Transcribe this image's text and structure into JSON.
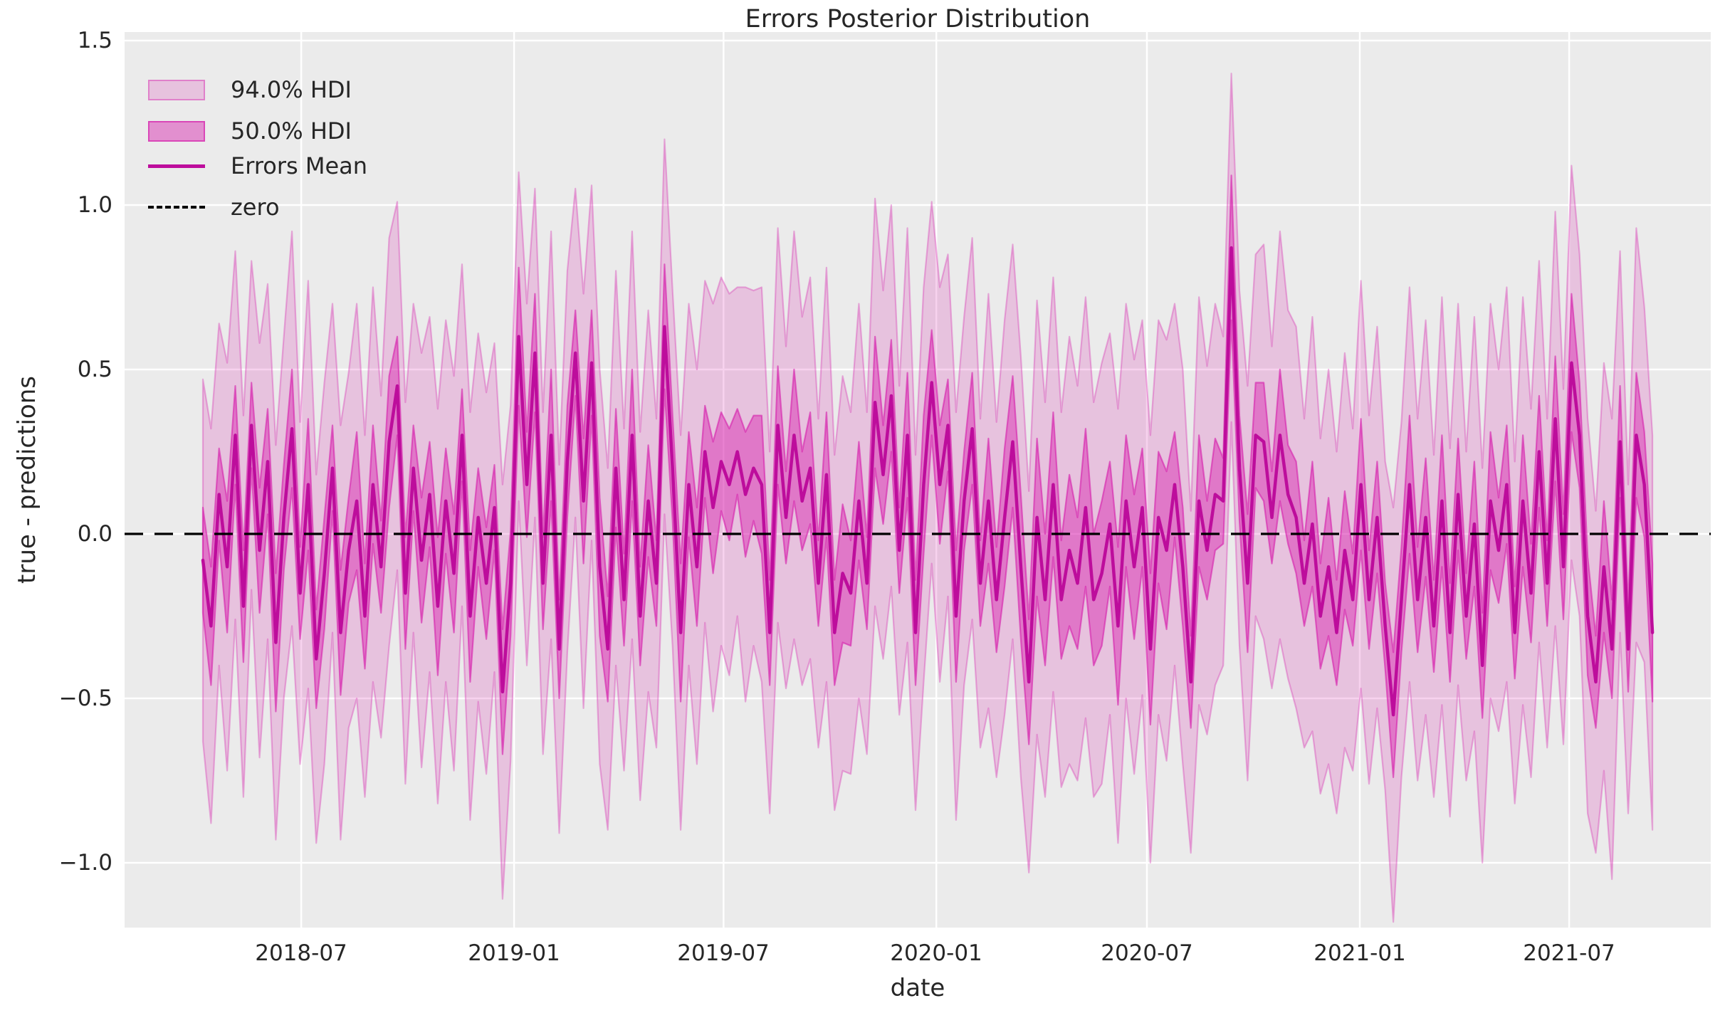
{
  "title": "Errors Posterior Distribution",
  "axes": {
    "xlabel": "date",
    "ylabel": "true - predictions"
  },
  "legend": {
    "items": [
      {
        "label": "94.0% HDI",
        "swatch": "patch-light"
      },
      {
        "label": "50.0% HDI",
        "swatch": "patch-dark"
      },
      {
        "label": "Errors Mean",
        "swatch": "line"
      },
      {
        "label": "zero",
        "swatch": "dashed-line"
      }
    ]
  },
  "chart_data": {
    "type": "line",
    "title": "Errors Posterior Distribution",
    "xlabel": "date",
    "ylabel": "true - predictions",
    "legend_position": "upper left",
    "grid": true,
    "x_start_date": "2018-04-07",
    "x_step_days": 7,
    "xlim_weeks": [
      -9.67,
      186.2
    ],
    "ylim": [
      -1.197,
      1.526
    ],
    "colors": {
      "band_base": "#d61eac",
      "band94_alpha": 0.2,
      "band50_alpha": 0.45,
      "mean_line": "#bd0d9c",
      "zero_line": "#000000",
      "plot_background": "#ebebeb",
      "grid": "#ffffff",
      "text": "#262626"
    },
    "yticks": [
      {
        "label": "1.5",
        "value": 1.5
      },
      {
        "label": "1.0",
        "value": 1.0
      },
      {
        "label": "0.5",
        "value": 0.5
      },
      {
        "label": "0.0",
        "value": 0.0
      },
      {
        "label": "−0.5",
        "value": -0.5
      },
      {
        "label": "−1.0",
        "value": -1.0
      }
    ],
    "xticks": [
      {
        "label": "2018-07",
        "week": 12.14
      },
      {
        "label": "2019-01",
        "week": 38.43
      },
      {
        "label": "2019-07",
        "week": 64.29
      },
      {
        "label": "2020-01",
        "week": 90.57
      },
      {
        "label": "2020-07",
        "week": 116.57
      },
      {
        "label": "2021-01",
        "week": 142.86
      },
      {
        "label": "2021-07",
        "week": 168.71
      }
    ],
    "series": {
      "mean": [
        -0.08,
        -0.28,
        0.12,
        -0.1,
        0.3,
        -0.22,
        0.33,
        -0.05,
        0.22,
        -0.33,
        0.05,
        0.32,
        -0.18,
        0.15,
        -0.38,
        -0.12,
        0.2,
        -0.3,
        -0.05,
        0.1,
        -0.25,
        0.15,
        -0.1,
        0.28,
        0.45,
        -0.18,
        0.2,
        -0.08,
        0.12,
        -0.22,
        0.1,
        -0.12,
        0.3,
        -0.25,
        0.05,
        -0.15,
        0.08,
        -0.48,
        -0.15,
        0.6,
        0.15,
        0.55,
        -0.15,
        0.3,
        -0.35,
        0.22,
        0.55,
        0.1,
        0.52,
        -0.1,
        -0.35,
        0.2,
        -0.2,
        0.3,
        -0.25,
        0.1,
        -0.15,
        0.63,
        0.2,
        -0.3,
        0.15,
        -0.1,
        0.25,
        0.08,
        0.22,
        0.15,
        0.25,
        0.12,
        0.2,
        0.15,
        -0.3,
        0.33,
        0.05,
        0.3,
        0.1,
        0.2,
        -0.15,
        0.18,
        -0.3,
        -0.12,
        -0.18,
        0.1,
        -0.15,
        0.4,
        0.18,
        0.42,
        -0.05,
        0.3,
        -0.3,
        0.15,
        0.46,
        0.15,
        0.33,
        -0.25,
        0.1,
        0.32,
        -0.15,
        0.1,
        -0.2,
        0.05,
        0.28,
        -0.1,
        -0.45,
        0.05,
        -0.2,
        0.15,
        -0.2,
        -0.05,
        -0.15,
        0.08,
        -0.2,
        -0.12,
        0.03,
        -0.28,
        0.1,
        -0.1,
        0.08,
        -0.35,
        0.05,
        -0.05,
        0.15,
        -0.1,
        -0.45,
        0.1,
        -0.05,
        0.12,
        0.1,
        0.87,
        0.2,
        -0.15,
        0.3,
        0.28,
        0.05,
        0.3,
        0.12,
        0.05,
        -0.15,
        0.03,
        -0.25,
        -0.1,
        -0.3,
        -0.05,
        -0.2,
        0.15,
        -0.2,
        0.05,
        -0.28,
        -0.55,
        -0.2,
        0.15,
        -0.2,
        0.05,
        -0.28,
        0.1,
        -0.3,
        0.12,
        -0.25,
        0.03,
        -0.4,
        0.1,
        -0.05,
        0.15,
        -0.3,
        0.1,
        -0.18,
        0.25,
        -0.15,
        0.35,
        -0.1,
        0.52,
        0.3,
        -0.25,
        -0.45,
        -0.1,
        -0.35,
        0.28,
        -0.35,
        0.3,
        0.15,
        -0.3
      ],
      "hdi50_halfwidth": [
        0.16,
        0.18,
        0.14,
        0.2,
        0.15,
        0.17,
        0.13,
        0.19,
        0.16,
        0.21,
        0.16,
        0.18,
        0.14,
        0.2,
        0.15,
        0.17,
        0.13,
        0.19,
        0.16,
        0.21,
        0.16,
        0.18,
        0.14,
        0.2,
        0.15,
        0.17,
        0.13,
        0.19,
        0.16,
        0.21,
        0.16,
        0.18,
        0.14,
        0.2,
        0.15,
        0.17,
        0.13,
        0.19,
        0.16,
        0.21,
        0.16,
        0.18,
        0.14,
        0.2,
        0.15,
        0.17,
        0.13,
        0.19,
        0.16,
        0.21,
        0.16,
        0.18,
        0.14,
        0.2,
        0.15,
        0.17,
        0.13,
        0.19,
        0.16,
        0.21,
        0.16,
        0.18,
        0.14,
        0.2,
        0.15,
        0.17,
        0.13,
        0.19,
        0.16,
        0.21,
        0.16,
        0.18,
        0.14,
        0.2,
        0.15,
        0.17,
        0.13,
        0.19,
        0.16,
        0.21,
        0.16,
        0.18,
        0.14,
        0.2,
        0.15,
        0.17,
        0.13,
        0.19,
        0.16,
        0.21,
        0.16,
        0.18,
        0.14,
        0.2,
        0.15,
        0.17,
        0.13,
        0.19,
        0.16,
        0.21,
        0.2,
        0.22,
        0.19,
        0.24,
        0.2,
        0.22,
        0.18,
        0.23,
        0.2,
        0.24,
        0.2,
        0.22,
        0.19,
        0.24,
        0.2,
        0.22,
        0.18,
        0.23,
        0.2,
        0.24,
        0.16,
        0.18,
        0.14,
        0.2,
        0.15,
        0.17,
        0.13,
        0.22,
        0.16,
        0.21,
        0.16,
        0.18,
        0.14,
        0.2,
        0.15,
        0.17,
        0.13,
        0.19,
        0.16,
        0.21,
        0.16,
        0.18,
        0.14,
        0.2,
        0.15,
        0.17,
        0.13,
        0.19,
        0.16,
        0.21,
        0.16,
        0.18,
        0.14,
        0.2,
        0.15,
        0.17,
        0.13,
        0.19,
        0.16,
        0.21,
        0.16,
        0.18,
        0.14,
        0.2,
        0.15,
        0.17,
        0.13,
        0.19,
        0.16,
        0.21,
        0.16,
        0.18,
        0.14,
        0.2,
        0.15,
        0.17,
        0.13,
        0.19,
        0.16,
        0.21
      ],
      "hdi94_halfwidth": [
        0.55,
        0.6,
        0.52,
        0.62,
        0.56,
        0.58,
        0.5,
        0.63,
        0.54,
        0.6,
        0.55,
        0.6,
        0.52,
        0.62,
        0.56,
        0.58,
        0.5,
        0.63,
        0.54,
        0.6,
        0.55,
        0.6,
        0.52,
        0.62,
        0.56,
        0.58,
        0.5,
        0.63,
        0.54,
        0.6,
        0.55,
        0.6,
        0.52,
        0.62,
        0.56,
        0.58,
        0.5,
        0.63,
        0.54,
        0.5,
        0.55,
        0.5,
        0.52,
        0.62,
        0.56,
        0.58,
        0.5,
        0.63,
        0.54,
        0.6,
        0.55,
        0.6,
        0.52,
        0.62,
        0.56,
        0.58,
        0.5,
        0.57,
        0.54,
        0.6,
        0.55,
        0.6,
        0.52,
        0.62,
        0.56,
        0.58,
        0.5,
        0.63,
        0.54,
        0.6,
        0.55,
        0.6,
        0.52,
        0.62,
        0.56,
        0.58,
        0.5,
        0.63,
        0.54,
        0.6,
        0.55,
        0.6,
        0.52,
        0.62,
        0.56,
        0.58,
        0.5,
        0.63,
        0.54,
        0.6,
        0.55,
        0.6,
        0.52,
        0.62,
        0.56,
        0.58,
        0.5,
        0.63,
        0.54,
        0.6,
        0.6,
        0.64,
        0.58,
        0.66,
        0.6,
        0.63,
        0.57,
        0.65,
        0.6,
        0.64,
        0.6,
        0.64,
        0.58,
        0.66,
        0.6,
        0.63,
        0.57,
        0.65,
        0.6,
        0.64,
        0.55,
        0.6,
        0.52,
        0.62,
        0.56,
        0.58,
        0.5,
        0.53,
        0.54,
        0.6,
        0.55,
        0.6,
        0.52,
        0.62,
        0.56,
        0.58,
        0.5,
        0.63,
        0.54,
        0.6,
        0.55,
        0.6,
        0.52,
        0.62,
        0.56,
        0.58,
        0.5,
        0.63,
        0.54,
        0.6,
        0.55,
        0.6,
        0.52,
        0.62,
        0.56,
        0.58,
        0.5,
        0.63,
        0.6,
        0.6,
        0.55,
        0.6,
        0.52,
        0.62,
        0.56,
        0.58,
        0.5,
        0.63,
        0.54,
        0.6,
        0.55,
        0.6,
        0.52,
        0.62,
        0.7,
        0.58,
        0.5,
        0.63,
        0.54,
        0.6
      ]
    }
  }
}
